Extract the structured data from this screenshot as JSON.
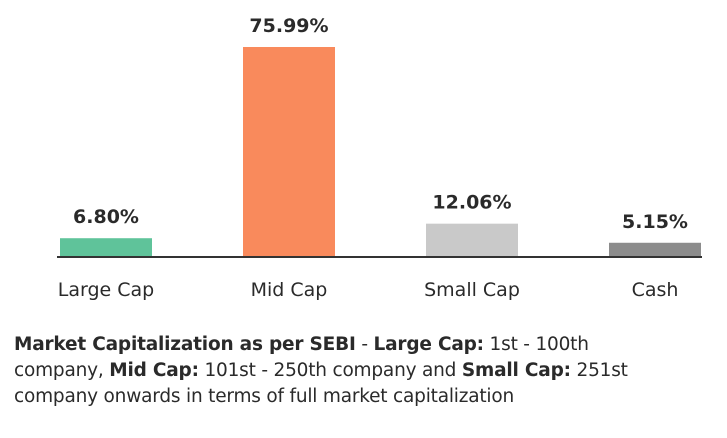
{
  "chart_data": {
    "type": "bar",
    "categories": [
      "Large Cap",
      "Mid Cap",
      "Small Cap",
      "Cash"
    ],
    "values": [
      6.8,
      75.99,
      12.06,
      5.15
    ],
    "data_labels": [
      "6.80%",
      "75.99%",
      "12.06%",
      "5.15%"
    ],
    "colors": [
      "#5fc39a",
      "#f98a5c",
      "#c9c9c9",
      "#8c8c8c"
    ],
    "title": "",
    "xlabel": "",
    "ylabel": "",
    "ylim": [
      0,
      75.99
    ],
    "grid": false,
    "legend": "none"
  },
  "footnote": {
    "line1_bold1": "Market Capitalization as per SEBI",
    "line1_text1": " - ",
    "line1_bold2": "Large Cap:",
    "line1_text2": " 1st - 100th",
    "line2_text1": "company, ",
    "line2_bold1": "Mid Cap:",
    "line2_text2": " 101st - 250th company and ",
    "line2_bold2": "Small Cap:",
    "line2_text3": " 251st",
    "line3_text1": "company onwards in terms of full market capitalization"
  }
}
